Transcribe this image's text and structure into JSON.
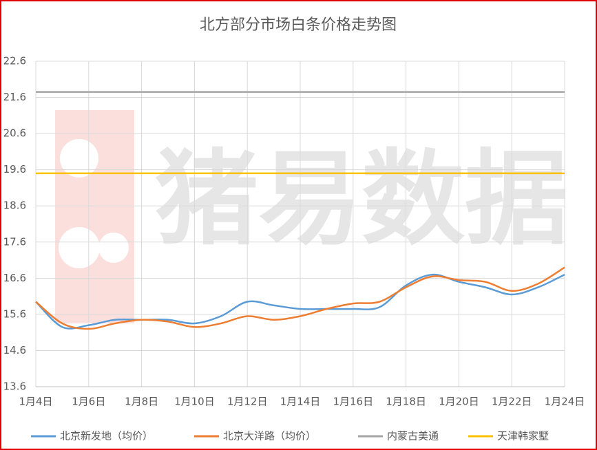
{
  "chart_data": {
    "type": "line",
    "title": "北方部分市场白条价格走势图",
    "watermark": "猪易数据",
    "categories": [
      "1月4日",
      null,
      "1月6日",
      null,
      "1月8日",
      null,
      "1月10日",
      null,
      "1月12日",
      null,
      "1月14日",
      null,
      "1月16日",
      null,
      "1月18日",
      null,
      "1月20日",
      null,
      "1月22日",
      null,
      "1月24日"
    ],
    "series": [
      {
        "name": "北京新发地（均价）",
        "color": "#5b9bd5",
        "values": [
          15.95,
          15.25,
          15.3,
          15.45,
          15.45,
          15.45,
          15.35,
          15.55,
          15.95,
          15.85,
          15.75,
          15.75,
          15.75,
          15.8,
          16.4,
          16.7,
          16.5,
          16.35,
          16.15,
          16.35,
          16.7
        ]
      },
      {
        "name": "北京大洋路（均价）",
        "color": "#ed7d31",
        "values": [
          15.95,
          15.35,
          15.2,
          15.35,
          15.45,
          15.4,
          15.25,
          15.35,
          15.55,
          15.45,
          15.55,
          15.75,
          15.9,
          15.95,
          16.35,
          16.65,
          16.55,
          16.5,
          16.25,
          16.45,
          16.9
        ]
      },
      {
        "name": "内蒙古美通",
        "color": "#a5a5a5",
        "values": [
          21.75,
          21.75,
          21.75,
          21.75,
          21.75,
          21.75,
          21.75,
          21.75,
          21.75,
          21.75,
          21.75,
          21.75,
          21.75,
          21.75,
          21.75,
          21.75,
          21.75,
          21.75,
          21.75,
          21.75,
          21.75
        ]
      },
      {
        "name": "天津韩家墅",
        "color": "#ffc000",
        "values": [
          19.5,
          19.5,
          19.5,
          19.5,
          19.5,
          19.5,
          19.5,
          19.5,
          19.5,
          19.5,
          19.5,
          19.5,
          19.5,
          19.5,
          19.5,
          19.5,
          19.5,
          19.5,
          19.5,
          19.5,
          19.5
        ]
      }
    ],
    "ylim": [
      13.6,
      22.6
    ],
    "yticks": [
      13.6,
      14.6,
      15.6,
      16.6,
      17.6,
      18.6,
      19.6,
      20.6,
      21.6,
      22.6
    ],
    "grid": true,
    "legend": "bottom"
  }
}
